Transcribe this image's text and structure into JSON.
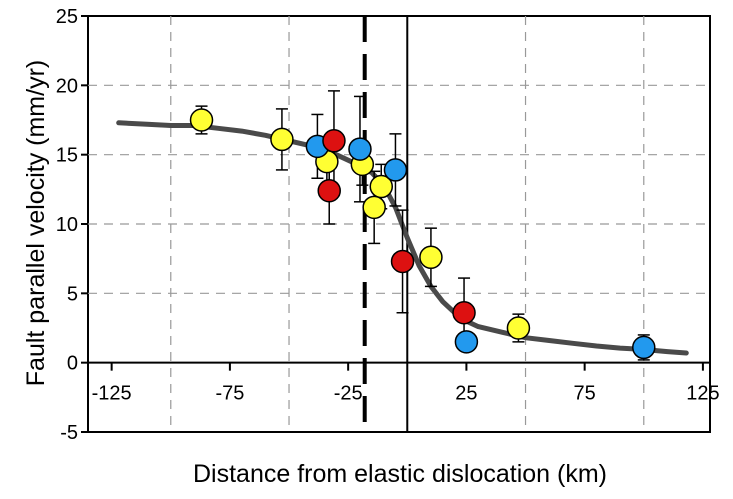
{
  "chart_data": {
    "type": "scatter",
    "title": "",
    "xlabel": "Distance from elastic dislocation (km)",
    "ylabel": "Fault parallel velocity (mm/yr)",
    "xlim": [
      -135,
      128
    ],
    "ylim": [
      -5,
      25
    ],
    "x_ticks": [
      -125,
      -75,
      -25,
      25,
      75,
      125
    ],
    "x_tick_labels": [
      "-125",
      "-75",
      "-25",
      "25",
      "75",
      "125"
    ],
    "y_ticks": [
      -5,
      0,
      5,
      10,
      15,
      20,
      25
    ],
    "y_tick_labels": [
      "-5",
      "0",
      "5",
      "10",
      "15",
      "20",
      "25"
    ],
    "grid": true,
    "legend": "none",
    "colors": {
      "yellow": "#ffff33",
      "blue": "#2299ee",
      "red": "#dd1111",
      "curve": "#4a4a4a",
      "grid": "#999999"
    },
    "model_curve": {
      "x": [
        -122,
        -110,
        -100,
        -90,
        -80,
        -70,
        -60,
        -50,
        -45,
        -40,
        -35,
        -30,
        -25,
        -20,
        -15,
        -10,
        -5,
        0,
        5,
        10,
        15,
        20,
        25,
        30,
        40,
        50,
        60,
        70,
        80,
        90,
        100,
        110,
        118
      ],
      "y": [
        17.3,
        17.2,
        17.1,
        17.1,
        16.9,
        16.7,
        16.4,
        16.0,
        15.8,
        15.6,
        15.3,
        15.0,
        14.6,
        14.2,
        13.7,
        12.8,
        11.2,
        9.0,
        7.0,
        5.5,
        4.4,
        3.6,
        3.0,
        2.6,
        2.2,
        1.8,
        1.6,
        1.4,
        1.2,
        1.05,
        0.95,
        0.8,
        0.7
      ]
    },
    "vertical_lines": [
      {
        "x": -18,
        "style": "dashed"
      },
      {
        "x": 0,
        "style": "solid"
      }
    ],
    "series": [
      {
        "color": "yellow",
        "points": [
          {
            "x": -87,
            "y": 17.5,
            "err": 1.0
          },
          {
            "x": -53,
            "y": 16.1,
            "err": 2.2
          },
          {
            "x": -34,
            "y": 14.5,
            "err": 1.7
          },
          {
            "x": -19,
            "y": 14.3,
            "err": 1.5
          },
          {
            "x": -11,
            "y": 12.7,
            "err": 1.6
          },
          {
            "x": -14,
            "y": 11.2,
            "err": 2.6
          },
          {
            "x": 10,
            "y": 7.6,
            "err": 2.1
          },
          {
            "x": 47,
            "y": 2.5,
            "err": 1.0
          }
        ]
      },
      {
        "color": "blue",
        "points": [
          {
            "x": -38,
            "y": 15.6,
            "err": 2.3
          },
          {
            "x": -20,
            "y": 15.4,
            "err": 3.8
          },
          {
            "x": -5,
            "y": 13.9,
            "err": 2.6
          },
          {
            "x": 25,
            "y": 1.5,
            "err": 0
          },
          {
            "x": 100,
            "y": 1.1,
            "err": 0.9
          }
        ]
      },
      {
        "color": "red",
        "points": [
          {
            "x": -31,
            "y": 16.0,
            "err": 3.6
          },
          {
            "x": -33,
            "y": 12.4,
            "err": 2.4
          },
          {
            "x": -2,
            "y": 7.3,
            "err": 3.7
          },
          {
            "x": 24,
            "y": 3.6,
            "err": 2.5
          }
        ]
      }
    ]
  }
}
